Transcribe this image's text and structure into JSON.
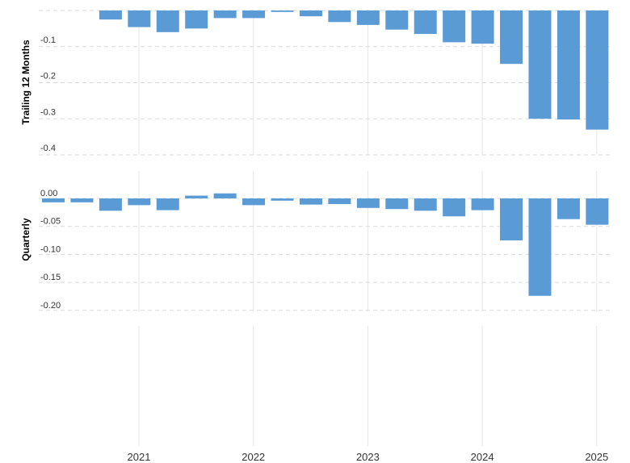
{
  "chart_data": [
    {
      "type": "bar",
      "ylabel": "Trailing 12 Months",
      "ylim": [
        -0.4,
        0
      ],
      "yticks": [
        {
          "value": -0.1,
          "label": "-0.1"
        },
        {
          "value": -0.2,
          "label": "-0.2"
        },
        {
          "value": -0.3,
          "label": "-0.3"
        },
        {
          "value": -0.4,
          "label": "-0.4"
        }
      ],
      "series": [
        {
          "values": [
            -0.025,
            -0.046,
            -0.06,
            -0.05,
            -0.021,
            -0.021,
            -0.004,
            -0.016,
            -0.032,
            -0.04,
            -0.053,
            -0.065,
            -0.088,
            -0.092,
            -0.148,
            -0.3,
            -0.302,
            -0.33
          ]
        }
      ]
    },
    {
      "type": "bar",
      "ylabel": "Quarterly",
      "ylim": [
        -0.2,
        0
      ],
      "yticks": [
        {
          "value": 0,
          "label": "0.00"
        },
        {
          "value": -0.05,
          "label": "-0.05"
        },
        {
          "value": -0.1,
          "label": "-0.10"
        },
        {
          "value": -0.15,
          "label": "-0.15"
        },
        {
          "value": -0.2,
          "label": "-0.20"
        }
      ],
      "series": [
        {
          "values": [
            -0.007,
            -0.007,
            -0.022,
            -0.012,
            -0.021,
            0.005,
            0.009,
            -0.012,
            -0.004,
            -0.011,
            -0.01,
            -0.017,
            -0.019,
            -0.022,
            -0.032,
            -0.021,
            -0.075,
            -0.174,
            -0.037,
            -0.047
          ]
        }
      ]
    }
  ],
  "x_axis": {
    "labels": [
      "2021",
      "2022",
      "2023",
      "2024",
      "2025"
    ],
    "years": [
      2021,
      2022,
      2023,
      2024,
      2025
    ]
  },
  "colors": {
    "bar": "#5b9bd5",
    "grid": "#d9d9d9"
  }
}
